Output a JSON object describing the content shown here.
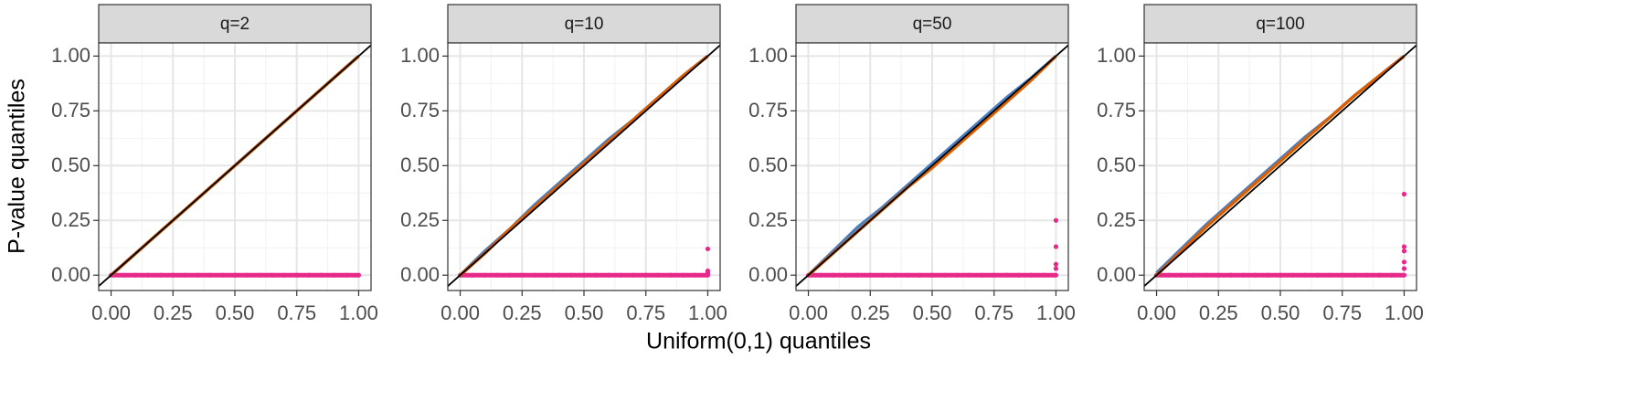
{
  "x_label": "Uniform(0,1) quantiles",
  "y_label": "P-value quantiles",
  "chart_data": [
    {
      "type": "qq",
      "title": "q=2",
      "xlim": [
        -0.05,
        1.05
      ],
      "ylim": [
        -0.07,
        1.06
      ],
      "xticks": [
        {
          "value": 0,
          "label": "0.00"
        },
        {
          "value": 0.25,
          "label": "0.25"
        },
        {
          "value": 0.5,
          "label": "0.50"
        },
        {
          "value": 0.75,
          "label": "0.75"
        },
        {
          "value": 1,
          "label": "1.00"
        }
      ],
      "yticks": [
        {
          "value": 0,
          "label": "0.00"
        },
        {
          "value": 0.25,
          "label": "0.25"
        },
        {
          "value": 0.5,
          "label": "0.50"
        },
        {
          "value": 0.75,
          "label": "0.75"
        },
        {
          "value": 1,
          "label": "1.00"
        }
      ],
      "grid": true,
      "series": [
        {
          "color": "#4a7fc1",
          "mode": "line",
          "x": [
            0,
            0.1,
            0.2,
            0.3,
            0.4,
            0.5,
            0.6,
            0.7,
            0.8,
            0.9,
            1
          ],
          "values": [
            0,
            0.1,
            0.2,
            0.3,
            0.4,
            0.5,
            0.6,
            0.7,
            0.8,
            0.9,
            1
          ]
        },
        {
          "color": "#d95f02",
          "mode": "line",
          "x": [
            0,
            0.1,
            0.2,
            0.3,
            0.4,
            0.5,
            0.6,
            0.7,
            0.8,
            0.9,
            1
          ],
          "values": [
            0,
            0.1,
            0.2,
            0.3,
            0.4,
            0.5,
            0.6,
            0.7,
            0.8,
            0.9,
            1
          ]
        },
        {
          "color": "#e7298a",
          "mode": "points",
          "x": [
            0,
            0.05,
            0.1,
            0.15,
            0.2,
            0.25,
            0.3,
            0.35,
            0.4,
            0.45,
            0.5,
            0.55,
            0.6,
            0.65,
            0.7,
            0.75,
            0.8,
            0.85,
            0.9,
            0.95,
            1
          ],
          "values": [
            0,
            0,
            0,
            0,
            0,
            0,
            0,
            0,
            0,
            0,
            0,
            0,
            0,
            0,
            0,
            0,
            0,
            0,
            0,
            0,
            0
          ]
        },
        {
          "color": "#000000",
          "mode": "line",
          "x": [
            -0.05,
            1.05
          ],
          "values": [
            -0.05,
            1.05
          ]
        }
      ]
    },
    {
      "type": "qq",
      "title": "q=10",
      "xlim": [
        -0.05,
        1.05
      ],
      "ylim": [
        -0.07,
        1.06
      ],
      "xticks": [
        {
          "value": 0,
          "label": "0.00"
        },
        {
          "value": 0.25,
          "label": "0.25"
        },
        {
          "value": 0.5,
          "label": "0.50"
        },
        {
          "value": 0.75,
          "label": "0.75"
        },
        {
          "value": 1,
          "label": "1.00"
        }
      ],
      "yticks": [
        {
          "value": 0,
          "label": "0.00"
        },
        {
          "value": 0.25,
          "label": "0.25"
        },
        {
          "value": 0.5,
          "label": "0.50"
        },
        {
          "value": 0.75,
          "label": "0.75"
        },
        {
          "value": 1,
          "label": "1.00"
        }
      ],
      "grid": true,
      "series": [
        {
          "color": "#4a7fc1",
          "mode": "line",
          "x": [
            0,
            0.1,
            0.2,
            0.3,
            0.4,
            0.5,
            0.6,
            0.7,
            0.8,
            0.9,
            1
          ],
          "values": [
            0,
            0.11,
            0.21,
            0.32,
            0.42,
            0.52,
            0.62,
            0.71,
            0.81,
            0.91,
            1
          ]
        },
        {
          "color": "#d95f02",
          "mode": "line",
          "x": [
            0,
            0.1,
            0.2,
            0.3,
            0.4,
            0.5,
            0.6,
            0.7,
            0.8,
            0.9,
            1
          ],
          "values": [
            0,
            0.1,
            0.21,
            0.31,
            0.41,
            0.51,
            0.61,
            0.71,
            0.81,
            0.91,
            1
          ]
        },
        {
          "color": "#e7298a",
          "mode": "points",
          "x": [
            0,
            0.05,
            0.1,
            0.15,
            0.2,
            0.25,
            0.3,
            0.35,
            0.4,
            0.45,
            0.5,
            0.55,
            0.6,
            0.65,
            0.7,
            0.75,
            0.8,
            0.85,
            0.9,
            0.95,
            1,
            1,
            1,
            1
          ],
          "values": [
            0,
            0,
            0,
            0,
            0,
            0,
            0,
            0,
            0,
            0,
            0,
            0,
            0,
            0,
            0,
            0,
            0,
            0,
            0,
            0,
            0,
            0.01,
            0.02,
            0.12
          ]
        },
        {
          "color": "#000000",
          "mode": "line",
          "x": [
            -0.05,
            1.05
          ],
          "values": [
            -0.05,
            1.05
          ]
        }
      ]
    },
    {
      "type": "qq",
      "title": "q=50",
      "xlim": [
        -0.05,
        1.05
      ],
      "ylim": [
        -0.07,
        1.06
      ],
      "xticks": [
        {
          "value": 0,
          "label": "0.00"
        },
        {
          "value": 0.25,
          "label": "0.25"
        },
        {
          "value": 0.5,
          "label": "0.50"
        },
        {
          "value": 0.75,
          "label": "0.75"
        },
        {
          "value": 1,
          "label": "1.00"
        }
      ],
      "yticks": [
        {
          "value": 0,
          "label": "0.00"
        },
        {
          "value": 0.25,
          "label": "0.25"
        },
        {
          "value": 0.5,
          "label": "0.50"
        },
        {
          "value": 0.75,
          "label": "0.75"
        },
        {
          "value": 1,
          "label": "1.00"
        }
      ],
      "grid": true,
      "series": [
        {
          "color": "#4a7fc1",
          "mode": "line",
          "x": [
            0,
            0.1,
            0.2,
            0.3,
            0.4,
            0.5,
            0.6,
            0.7,
            0.8,
            0.9,
            1
          ],
          "values": [
            0,
            0.11,
            0.22,
            0.31,
            0.41,
            0.51,
            0.61,
            0.71,
            0.81,
            0.9,
            1
          ]
        },
        {
          "color": "#d95f02",
          "mode": "line",
          "x": [
            0,
            0.1,
            0.2,
            0.3,
            0.4,
            0.5,
            0.6,
            0.7,
            0.8,
            0.9,
            1
          ],
          "values": [
            0,
            0.1,
            0.2,
            0.3,
            0.4,
            0.49,
            0.59,
            0.69,
            0.79,
            0.89,
            1
          ]
        },
        {
          "color": "#e7298a",
          "mode": "points",
          "x": [
            0,
            0.05,
            0.1,
            0.15,
            0.2,
            0.25,
            0.3,
            0.35,
            0.4,
            0.45,
            0.5,
            0.55,
            0.6,
            0.65,
            0.7,
            0.75,
            0.8,
            0.85,
            0.9,
            0.95,
            1,
            1,
            1,
            1,
            1
          ],
          "values": [
            0,
            0,
            0,
            0,
            0,
            0,
            0,
            0,
            0,
            0,
            0,
            0,
            0,
            0,
            0,
            0,
            0,
            0,
            0,
            0,
            0,
            0.03,
            0.05,
            0.13,
            0.25
          ]
        },
        {
          "color": "#000000",
          "mode": "line",
          "x": [
            -0.05,
            1.05
          ],
          "values": [
            -0.05,
            1.05
          ]
        }
      ]
    },
    {
      "type": "qq",
      "title": "q=100",
      "xlim": [
        -0.05,
        1.05
      ],
      "ylim": [
        -0.07,
        1.06
      ],
      "xticks": [
        {
          "value": 0,
          "label": "0.00"
        },
        {
          "value": 0.25,
          "label": "0.25"
        },
        {
          "value": 0.5,
          "label": "0.50"
        },
        {
          "value": 0.75,
          "label": "0.75"
        },
        {
          "value": 1,
          "label": "1.00"
        }
      ],
      "yticks": [
        {
          "value": 0,
          "label": "0.00"
        },
        {
          "value": 0.25,
          "label": "0.25"
        },
        {
          "value": 0.5,
          "label": "0.50"
        },
        {
          "value": 0.75,
          "label": "0.75"
        },
        {
          "value": 1,
          "label": "1.00"
        }
      ],
      "grid": true,
      "series": [
        {
          "color": "#4a7fc1",
          "mode": "line",
          "x": [
            0,
            0.1,
            0.2,
            0.3,
            0.4,
            0.5,
            0.6,
            0.7,
            0.8,
            0.9,
            1
          ],
          "values": [
            0.01,
            0.12,
            0.23,
            0.33,
            0.43,
            0.53,
            0.63,
            0.72,
            0.82,
            0.91,
            1
          ]
        },
        {
          "color": "#d95f02",
          "mode": "line",
          "x": [
            0,
            0.1,
            0.2,
            0.3,
            0.4,
            0.5,
            0.6,
            0.7,
            0.8,
            0.9,
            1
          ],
          "values": [
            0,
            0.11,
            0.22,
            0.32,
            0.42,
            0.52,
            0.62,
            0.72,
            0.82,
            0.91,
            1
          ]
        },
        {
          "color": "#e7298a",
          "mode": "points",
          "x": [
            0,
            0.05,
            0.1,
            0.15,
            0.2,
            0.25,
            0.3,
            0.35,
            0.4,
            0.45,
            0.5,
            0.55,
            0.6,
            0.65,
            0.7,
            0.75,
            0.8,
            0.85,
            0.9,
            0.95,
            1,
            1,
            1,
            1,
            1,
            1
          ],
          "values": [
            0,
            0,
            0,
            0,
            0,
            0,
            0,
            0,
            0,
            0,
            0,
            0,
            0,
            0,
            0,
            0,
            0,
            0,
            0,
            0,
            0,
            0.03,
            0.06,
            0.11,
            0.13,
            0.37
          ]
        },
        {
          "color": "#000000",
          "mode": "line",
          "x": [
            -0.05,
            1.05
          ],
          "values": [
            -0.05,
            1.05
          ]
        }
      ]
    }
  ]
}
